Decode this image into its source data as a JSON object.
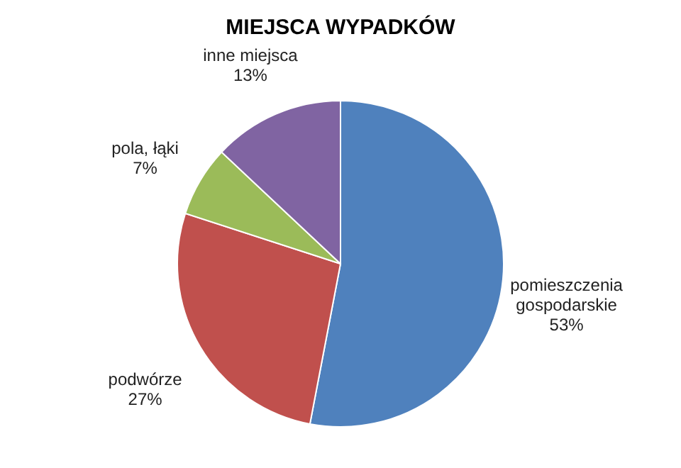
{
  "chart_data": {
    "type": "pie",
    "title": "MIEJSCA  WYPADKÓW",
    "categories": [
      "pomieszczenia gospodarskie",
      "podwórze",
      "pola, łąki",
      "inne miejsca"
    ],
    "values": [
      53,
      27,
      7,
      13
    ],
    "value_labels": [
      "53%",
      "27%",
      "7%",
      "13%"
    ],
    "colors": [
      "#4f81bd",
      "#c0504d",
      "#9bbb59",
      "#8064a2"
    ],
    "legend": false
  }
}
